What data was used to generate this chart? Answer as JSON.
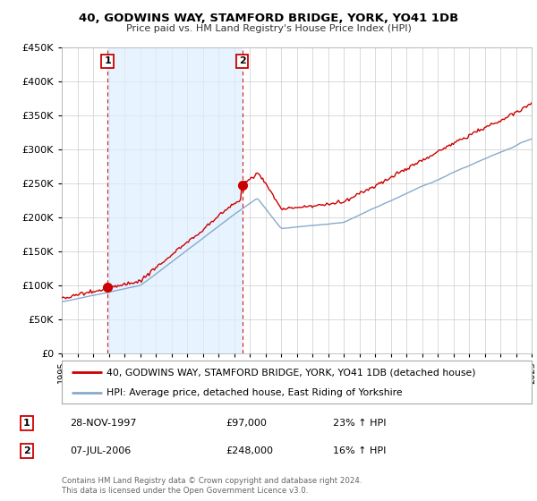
{
  "title": "40, GODWINS WAY, STAMFORD BRIDGE, YORK, YO41 1DB",
  "subtitle": "Price paid vs. HM Land Registry's House Price Index (HPI)",
  "legend_line1": "40, GODWINS WAY, STAMFORD BRIDGE, YORK, YO41 1DB (detached house)",
  "legend_line2": "HPI: Average price, detached house, East Riding of Yorkshire",
  "footer": "Contains HM Land Registry data © Crown copyright and database right 2024.\nThis data is licensed under the Open Government Licence v3.0.",
  "table_row1_num": "1",
  "table_row1_date": "28-NOV-1997",
  "table_row1_price": "£97,000",
  "table_row1_hpi": "23% ↑ HPI",
  "table_row2_num": "2",
  "table_row2_date": "07-JUL-2006",
  "table_row2_price": "£248,000",
  "table_row2_hpi": "16% ↑ HPI",
  "sale_color": "#cc0000",
  "hpi_color": "#88aacc",
  "shade_color": "#ddeeff",
  "dashed_vline_color": "#cc0000",
  "ylim": [
    0,
    450000
  ],
  "yticks": [
    0,
    50000,
    100000,
    150000,
    200000,
    250000,
    300000,
    350000,
    400000,
    450000
  ],
  "sale1_x": 1997.92,
  "sale1_y": 97000,
  "sale2_x": 2006.52,
  "sale2_y": 248000,
  "xmin": 1995,
  "xmax": 2025,
  "xtick_years": [
    1995,
    1996,
    1997,
    1998,
    1999,
    2000,
    2001,
    2002,
    2003,
    2004,
    2005,
    2006,
    2007,
    2008,
    2009,
    2010,
    2011,
    2012,
    2013,
    2014,
    2015,
    2016,
    2017,
    2018,
    2019,
    2020,
    2021,
    2022,
    2023,
    2024,
    2025
  ]
}
